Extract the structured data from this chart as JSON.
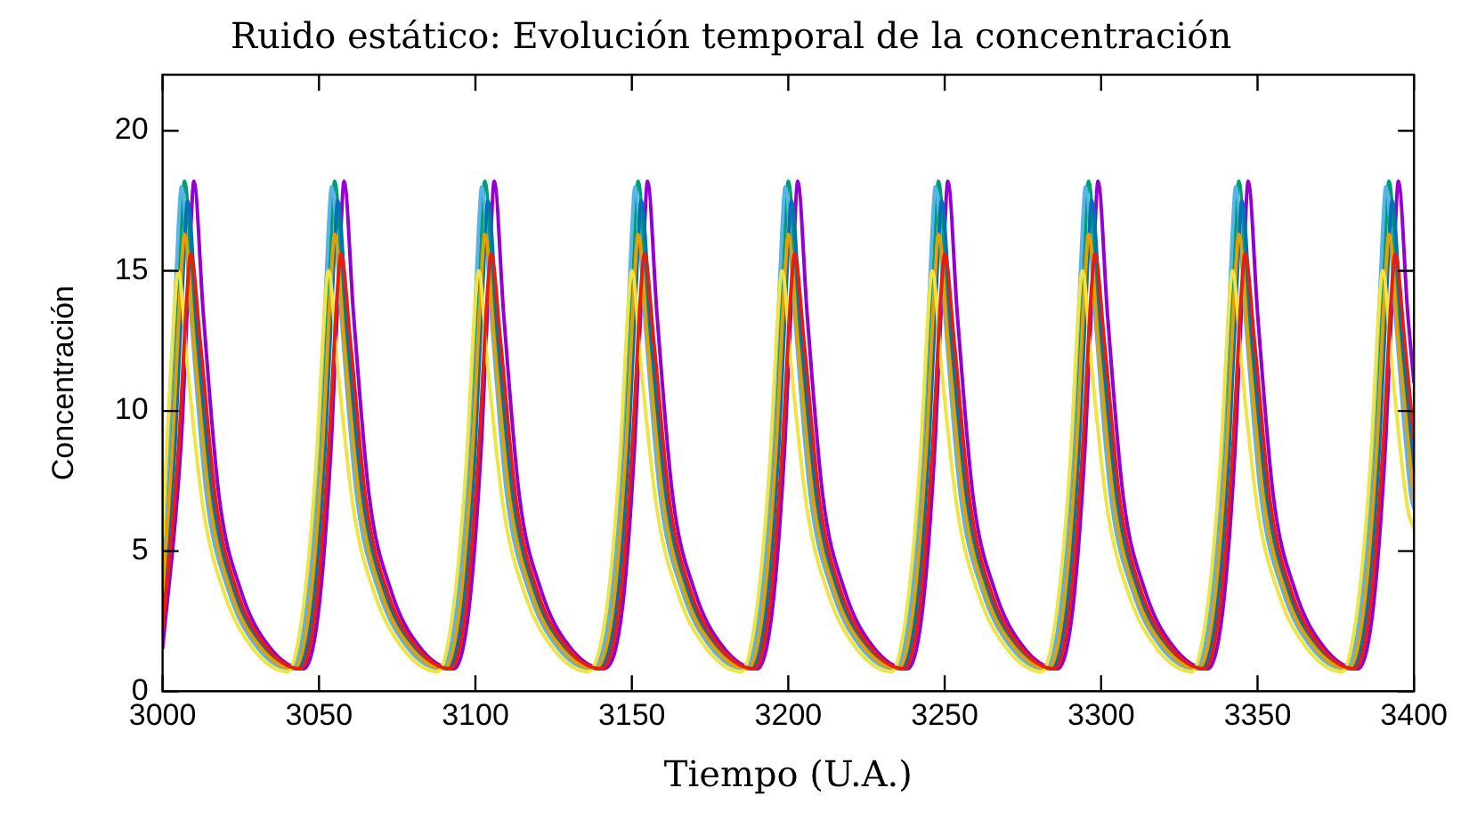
{
  "chart_data": {
    "type": "line",
    "title": "Ruido estático: Evolución temporal de la concentración",
    "xlabel": "Tiempo (U.A.)",
    "ylabel": "Concentración",
    "xlim": [
      3000,
      3400
    ],
    "xticks": [
      3000,
      3050,
      3100,
      3150,
      3200,
      3250,
      3300,
      3350,
      3400
    ],
    "ylim": [
      0,
      22
    ],
    "yticks": [
      0,
      5,
      10,
      15,
      20
    ],
    "grid": false,
    "legend": false,
    "x": [
      3000,
      3003,
      3006,
      3007,
      3010,
      3015,
      3022,
      3031,
      3042,
      3047,
      3051,
      3054,
      3055,
      3058,
      3063,
      3070,
      3079,
      3090,
      3095,
      3099,
      3102,
      3103,
      3106,
      3111,
      3118,
      3127,
      3138,
      3144,
      3148,
      3151,
      3152,
      3155,
      3160,
      3167,
      3176,
      3187,
      3192,
      3196,
      3199,
      3200,
      3203,
      3208,
      3215,
      3224,
      3235,
      3240,
      3244,
      3247,
      3248,
      3251,
      3256,
      3263,
      3272,
      3283,
      3288,
      3292,
      3295,
      3296,
      3299,
      3304,
      3311,
      3320,
      3331,
      3336,
      3340,
      3343,
      3344,
      3347,
      3352,
      3359,
      3368,
      3379,
      3384,
      3388,
      3391,
      3392,
      3395,
      3400
    ],
    "series": [
      {
        "color": "#9400d3",
        "x": [
          3000,
          3006,
          3009,
          3010,
          3013,
          3018,
          3025,
          3034,
          3045,
          3050,
          3054,
          3057,
          3058,
          3061,
          3066,
          3073,
          3082,
          3093,
          3098,
          3102,
          3105,
          3106,
          3109,
          3114,
          3121,
          3130,
          3141,
          3147,
          3151,
          3154,
          3155,
          3158,
          3163,
          3170,
          3179,
          3190,
          3195,
          3199,
          3202,
          3203,
          3206,
          3211,
          3218,
          3227,
          3238,
          3243,
          3247,
          3250,
          3251,
          3254,
          3259,
          3266,
          3275,
          3286,
          3291,
          3295,
          3298,
          3299,
          3302,
          3307,
          3314,
          3323,
          3334,
          3339,
          3343,
          3346,
          3347,
          3350,
          3355,
          3362,
          3371,
          3382,
          3387,
          3391,
          3394,
          3395,
          3398,
          3400
        ],
        "values": [
          1.5,
          9,
          16.5,
          18.2,
          13.5,
          7,
          3.6,
          1.6,
          0.8,
          3,
          9,
          16.5,
          18.2,
          13.5,
          7,
          3.6,
          1.6,
          0.8,
          3,
          9,
          16.5,
          18.2,
          13.5,
          7,
          3.6,
          1.6,
          0.8,
          3,
          9,
          16.5,
          18.2,
          13.5,
          7,
          3.6,
          1.6,
          0.8,
          3,
          9,
          16.5,
          18.2,
          13.5,
          7,
          3.6,
          1.6,
          0.8,
          3,
          9,
          16.5,
          18.2,
          13.5,
          7,
          3.6,
          1.6,
          0.8,
          3,
          9,
          16.5,
          18.2,
          13.5,
          7,
          3.6,
          1.6,
          0.8,
          3,
          9,
          16.5,
          18.2,
          13.5,
          7,
          3.6,
          1.6,
          0.8,
          3,
          9,
          16.5,
          18.2,
          13.5,
          11
        ]
      },
      {
        "color": "#009e73",
        "values": [
          3.5,
          9,
          16.5,
          18.2,
          13.5,
          7,
          3.6,
          1.6,
          0.8,
          3,
          9,
          16.5,
          18.2,
          13.5,
          7,
          3.6,
          1.6,
          0.8,
          3,
          9,
          16.5,
          18.2,
          13.5,
          7,
          3.6,
          1.6,
          0.8,
          3,
          9,
          16.5,
          18.2,
          13.5,
          7,
          3.6,
          1.6,
          0.8,
          3,
          9,
          16.5,
          18.2,
          13.5,
          7,
          3.6,
          1.6,
          0.8,
          3,
          9,
          16.5,
          18.2,
          13.5,
          7,
          3.6,
          1.6,
          0.8,
          3,
          9,
          16.5,
          18.2,
          13.5,
          7,
          3.6,
          1.6,
          0.8,
          3,
          9,
          16.5,
          18.2,
          13.5,
          7,
          3.6,
          1.6,
          0.8,
          3,
          9,
          16.5,
          18.2,
          13.5,
          7
        ]
      },
      {
        "color": "#56b4e9",
        "x": [
          3000,
          3002,
          3005,
          3006,
          3009,
          3014,
          3021,
          3030,
          3041,
          3046,
          3050,
          3053,
          3054,
          3057,
          3062,
          3069,
          3078,
          3089,
          3094,
          3098,
          3101,
          3102,
          3105,
          3110,
          3117,
          3126,
          3137,
          3143,
          3147,
          3150,
          3151,
          3154,
          3159,
          3166,
          3175,
          3186,
          3191,
          3195,
          3198,
          3199,
          3202,
          3207,
          3214,
          3223,
          3234,
          3239,
          3243,
          3246,
          3247,
          3250,
          3255,
          3262,
          3271,
          3282,
          3287,
          3291,
          3294,
          3295,
          3298,
          3303,
          3310,
          3319,
          3330,
          3335,
          3339,
          3342,
          3343,
          3346,
          3351,
          3358,
          3367,
          3378,
          3383,
          3387,
          3390,
          3391,
          3394,
          3399,
          3400
        ],
        "values": [
          5,
          9,
          16.5,
          18,
          13.5,
          7,
          3.6,
          1.6,
          0.8,
          3,
          9,
          16.5,
          18,
          13.5,
          7,
          3.6,
          1.6,
          0.8,
          3,
          9,
          16.5,
          18,
          13.5,
          7,
          3.6,
          1.6,
          0.8,
          3,
          9,
          16.5,
          18,
          13.5,
          7,
          3.6,
          1.6,
          0.8,
          3,
          9,
          16.5,
          18,
          13.5,
          7,
          3.6,
          1.6,
          0.8,
          3,
          9,
          16.5,
          18,
          13.5,
          7,
          3.6,
          1.6,
          0.8,
          3,
          9,
          16.5,
          18,
          13.5,
          7,
          3.6,
          1.6,
          0.8,
          3,
          9,
          16.5,
          18,
          13.5,
          7,
          3.6,
          1.6,
          0.8,
          3,
          9,
          16.5,
          18,
          13.5,
          7,
          6.5
        ]
      },
      {
        "color": "#0072b2",
        "x": [
          3000,
          3004,
          3007,
          3008,
          3011,
          3016,
          3023,
          3032,
          3043,
          3048,
          3052,
          3055,
          3056,
          3059,
          3064,
          3071,
          3080,
          3091,
          3096,
          3100,
          3103,
          3104,
          3107,
          3112,
          3119,
          3128,
          3139,
          3145,
          3149,
          3152,
          3153,
          3156,
          3161,
          3168,
          3177,
          3188,
          3193,
          3197,
          3200,
          3201,
          3204,
          3209,
          3216,
          3225,
          3236,
          3241,
          3245,
          3248,
          3249,
          3252,
          3257,
          3264,
          3273,
          3284,
          3289,
          3293,
          3296,
          3297,
          3300,
          3305,
          3312,
          3321,
          3332,
          3337,
          3341,
          3344,
          3345,
          3348,
          3353,
          3360,
          3369,
          3380,
          3385,
          3389,
          3392,
          3393,
          3396,
          3400
        ],
        "values": [
          3,
          8.8,
          16,
          17.5,
          13,
          7,
          3.6,
          1.6,
          0.8,
          3,
          8.8,
          16,
          17.5,
          13,
          7,
          3.6,
          1.6,
          0.8,
          3,
          8.8,
          16,
          17.5,
          13,
          7,
          3.6,
          1.6,
          0.8,
          3,
          8.8,
          16,
          17.5,
          13,
          7,
          3.6,
          1.6,
          0.8,
          3,
          8.8,
          16,
          17.5,
          13,
          7,
          3.6,
          1.6,
          0.8,
          3,
          8.8,
          16,
          17.5,
          13,
          7,
          3.6,
          1.6,
          0.8,
          3,
          8.8,
          16,
          17.5,
          13,
          7,
          3.6,
          1.6,
          0.8,
          3,
          8.8,
          16,
          17.5,
          13,
          7,
          3.6,
          1.6,
          0.8,
          3,
          8.8,
          16,
          17.5,
          13,
          8
        ]
      },
      {
        "color": "#e69f00",
        "values": [
          3.5,
          8.5,
          15,
          16.3,
          12.5,
          6.8,
          3.5,
          1.6,
          0.8,
          3,
          8.5,
          15,
          16.3,
          12.5,
          6.8,
          3.5,
          1.6,
          0.8,
          3,
          8.5,
          15,
          16.3,
          12.5,
          6.8,
          3.5,
          1.6,
          0.8,
          3,
          8.5,
          15,
          16.3,
          12.5,
          6.8,
          3.5,
          1.6,
          0.8,
          3,
          8.5,
          15,
          16.3,
          12.5,
          6.8,
          3.5,
          1.6,
          0.8,
          3,
          8.5,
          15,
          16.3,
          12.5,
          6.8,
          3.5,
          1.6,
          0.8,
          3,
          8.5,
          15,
          16.3,
          12.5,
          6.8,
          3.5,
          1.6,
          0.8,
          3,
          8.5,
          15,
          16.3,
          12.5,
          6.8,
          3.5,
          1.6,
          0.8,
          3,
          8.5,
          15,
          16.3,
          12.5,
          6.8
        ]
      },
      {
        "color": "#f0e442",
        "x": [
          3000,
          3001,
          3004,
          3005,
          3008,
          3013,
          3020,
          3029,
          3040,
          3045,
          3049,
          3052,
          3053,
          3056,
          3061,
          3068,
          3077,
          3088,
          3093,
          3097,
          3100,
          3101,
          3104,
          3109,
          3116,
          3125,
          3136,
          3142,
          3146,
          3149,
          3150,
          3153,
          3158,
          3165,
          3174,
          3185,
          3190,
          3194,
          3197,
          3198,
          3201,
          3206,
          3213,
          3222,
          3233,
          3238,
          3242,
          3245,
          3246,
          3249,
          3254,
          3261,
          3270,
          3281,
          3286,
          3290,
          3293,
          3294,
          3297,
          3302,
          3309,
          3318,
          3329,
          3334,
          3338,
          3341,
          3342,
          3345,
          3350,
          3357,
          3366,
          3377,
          3382,
          3386,
          3389,
          3390,
          3393,
          3398,
          3400
        ],
        "values": [
          5.5,
          8,
          14,
          15,
          11.5,
          6.5,
          3.4,
          1.5,
          0.7,
          3,
          8,
          14,
          15,
          11.5,
          6.5,
          3.4,
          1.5,
          0.7,
          3,
          8,
          14,
          15,
          11.5,
          6.5,
          3.4,
          1.5,
          0.7,
          3,
          8,
          14,
          15,
          11.5,
          6.5,
          3.4,
          1.5,
          0.7,
          3,
          8,
          14,
          15,
          11.5,
          6.5,
          3.4,
          1.5,
          0.7,
          3,
          8,
          14,
          15,
          11.5,
          6.5,
          3.4,
          1.5,
          0.7,
          3,
          8,
          14,
          15,
          11.5,
          6.5,
          3.4,
          1.5,
          0.7,
          3,
          8,
          14,
          15,
          11.5,
          6.5,
          3.4,
          1.5,
          0.7,
          3,
          8,
          14,
          15,
          11.5,
          6.5,
          5.8
        ]
      },
      {
        "color": "#e51e10",
        "x": [
          3000,
          3005,
          3008,
          3009,
          3012,
          3017,
          3024,
          3033,
          3044,
          3049,
          3053,
          3056,
          3057,
          3060,
          3065,
          3072,
          3081,
          3092,
          3097,
          3101,
          3104,
          3105,
          3108,
          3113,
          3120,
          3129,
          3140,
          3146,
          3150,
          3153,
          3154,
          3157,
          3162,
          3169,
          3178,
          3189,
          3194,
          3198,
          3201,
          3202,
          3205,
          3210,
          3217,
          3226,
          3237,
          3242,
          3246,
          3249,
          3250,
          3253,
          3258,
          3265,
          3274,
          3285,
          3290,
          3294,
          3297,
          3298,
          3301,
          3306,
          3313,
          3322,
          3333,
          3338,
          3342,
          3345,
          3346,
          3349,
          3354,
          3361,
          3370,
          3381,
          3386,
          3390,
          3393,
          3394,
          3397,
          3400
        ],
        "values": [
          2.2,
          8.5,
          14.5,
          15.6,
          12.5,
          6.8,
          3.5,
          1.6,
          0.8,
          3,
          8.5,
          14.5,
          15.6,
          12.5,
          6.8,
          3.5,
          1.6,
          0.8,
          3,
          8.5,
          14.5,
          15.6,
          12.5,
          6.8,
          3.5,
          1.6,
          0.8,
          3,
          8.5,
          14.5,
          15.6,
          12.5,
          6.8,
          3.5,
          1.6,
          0.8,
          3,
          8.5,
          14.5,
          15.6,
          12.5,
          6.8,
          3.5,
          1.6,
          0.8,
          3,
          8.5,
          14.5,
          15.6,
          12.5,
          6.8,
          3.5,
          1.6,
          0.8,
          3,
          8.5,
          14.5,
          15.6,
          12.5,
          6.8,
          3.5,
          1.6,
          0.8,
          3,
          8.5,
          14.5,
          15.6,
          12.5,
          6.8,
          3.5,
          1.6,
          0.8,
          3,
          8.5,
          14.5,
          15.6,
          12.5,
          9
        ]
      }
    ]
  }
}
